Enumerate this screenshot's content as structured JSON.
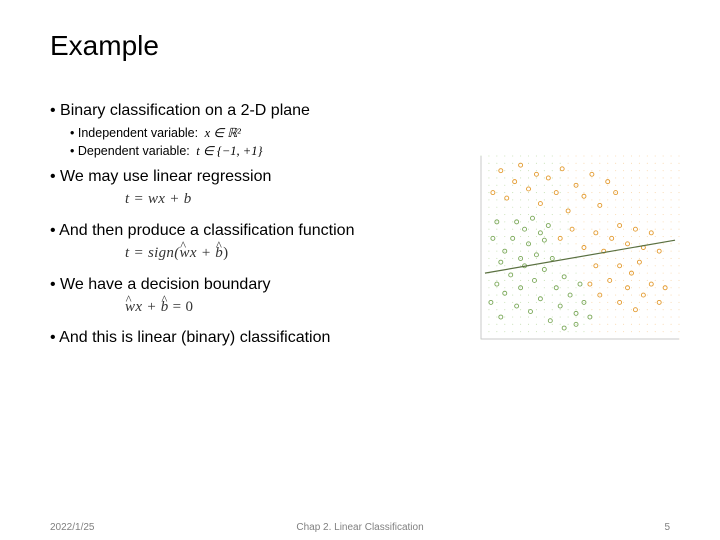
{
  "slide": {
    "title": "Example",
    "bullets": {
      "b1": "Binary classification on a 2-D plane",
      "b1a_label": "Independent variable:",
      "b1a_math": "x ∈ ℝ²",
      "b1b_label": "Dependent variable:",
      "b1b_math": "t ∈ {−1, +1}",
      "b2": "We may use linear regression",
      "f2": "t = wx + b",
      "b3": "And then produce a classification function",
      "f3_pre": "t = sign(",
      "f3_w": "w",
      "f3_mid": "x + ",
      "f3_b": "b",
      "f3_post": ")",
      "b4": "We have a decision boundary",
      "f4_w": "w",
      "f4_mid": "x + ",
      "f4_b": "b",
      "f4_post": " = 0",
      "b5": "And this is linear (binary) classification"
    }
  },
  "footer": {
    "date": "2022/1/25",
    "chapter": "Chap 2. Linear Classification",
    "page": "5"
  },
  "figure": {
    "type": "scatter-with-line",
    "background_color": "#ffffff",
    "axis_color": "#c8c8c8",
    "xlim": [
      0,
      1
    ],
    "ylim": [
      0,
      1
    ],
    "grid_dots": {
      "step": 0.04,
      "color_left": "#c7e0b4",
      "color_right": "#f9d9b0",
      "split_x": 0.48,
      "slope": -0.17
    },
    "line": {
      "x1": 0.02,
      "y1": 0.36,
      "x2": 0.98,
      "y2": 0.54,
      "color": "#5a7040",
      "width": 1.2
    },
    "classA": {
      "color": "#e39a2e",
      "marker": "circle",
      "r": 2.0,
      "points": [
        [
          0.06,
          0.8
        ],
        [
          0.1,
          0.92
        ],
        [
          0.13,
          0.77
        ],
        [
          0.17,
          0.86
        ],
        [
          0.2,
          0.95
        ],
        [
          0.24,
          0.82
        ],
        [
          0.28,
          0.9
        ],
        [
          0.3,
          0.74
        ],
        [
          0.34,
          0.88
        ],
        [
          0.38,
          0.8
        ],
        [
          0.41,
          0.93
        ],
        [
          0.44,
          0.7
        ],
        [
          0.48,
          0.84
        ],
        [
          0.52,
          0.78
        ],
        [
          0.56,
          0.9
        ],
        [
          0.6,
          0.73
        ],
        [
          0.64,
          0.86
        ],
        [
          0.68,
          0.8
        ],
        [
          0.4,
          0.55
        ],
        [
          0.46,
          0.6
        ],
        [
          0.52,
          0.5
        ],
        [
          0.58,
          0.58
        ],
        [
          0.62,
          0.48
        ],
        [
          0.66,
          0.55
        ],
        [
          0.7,
          0.62
        ],
        [
          0.74,
          0.52
        ],
        [
          0.78,
          0.6
        ],
        [
          0.82,
          0.5
        ],
        [
          0.86,
          0.58
        ],
        [
          0.9,
          0.48
        ],
        [
          0.55,
          0.3
        ],
        [
          0.6,
          0.24
        ],
        [
          0.65,
          0.32
        ],
        [
          0.7,
          0.2
        ],
        [
          0.74,
          0.28
        ],
        [
          0.78,
          0.16
        ],
        [
          0.82,
          0.24
        ],
        [
          0.86,
          0.3
        ],
        [
          0.9,
          0.2
        ],
        [
          0.93,
          0.28
        ],
        [
          0.7,
          0.4
        ],
        [
          0.76,
          0.36
        ],
        [
          0.8,
          0.42
        ],
        [
          0.58,
          0.4
        ]
      ]
    },
    "classB": {
      "color": "#7aa858",
      "marker": "circle",
      "r": 2.0,
      "points": [
        [
          0.05,
          0.2
        ],
        [
          0.08,
          0.3
        ],
        [
          0.1,
          0.12
        ],
        [
          0.12,
          0.25
        ],
        [
          0.15,
          0.35
        ],
        [
          0.18,
          0.18
        ],
        [
          0.2,
          0.28
        ],
        [
          0.22,
          0.4
        ],
        [
          0.25,
          0.15
        ],
        [
          0.27,
          0.32
        ],
        [
          0.3,
          0.22
        ],
        [
          0.32,
          0.38
        ],
        [
          0.35,
          0.1
        ],
        [
          0.38,
          0.28
        ],
        [
          0.4,
          0.18
        ],
        [
          0.42,
          0.34
        ],
        [
          0.45,
          0.24
        ],
        [
          0.48,
          0.14
        ],
        [
          0.5,
          0.3
        ],
        [
          0.52,
          0.2
        ],
        [
          0.12,
          0.48
        ],
        [
          0.16,
          0.55
        ],
        [
          0.2,
          0.44
        ],
        [
          0.24,
          0.52
        ],
        [
          0.28,
          0.46
        ],
        [
          0.32,
          0.54
        ],
        [
          0.36,
          0.44
        ],
        [
          0.18,
          0.64
        ],
        [
          0.22,
          0.6
        ],
        [
          0.26,
          0.66
        ],
        [
          0.3,
          0.58
        ],
        [
          0.34,
          0.62
        ],
        [
          0.06,
          0.55
        ],
        [
          0.08,
          0.64
        ],
        [
          0.1,
          0.42
        ],
        [
          0.55,
          0.12
        ],
        [
          0.48,
          0.08
        ],
        [
          0.42,
          0.06
        ]
      ]
    }
  }
}
